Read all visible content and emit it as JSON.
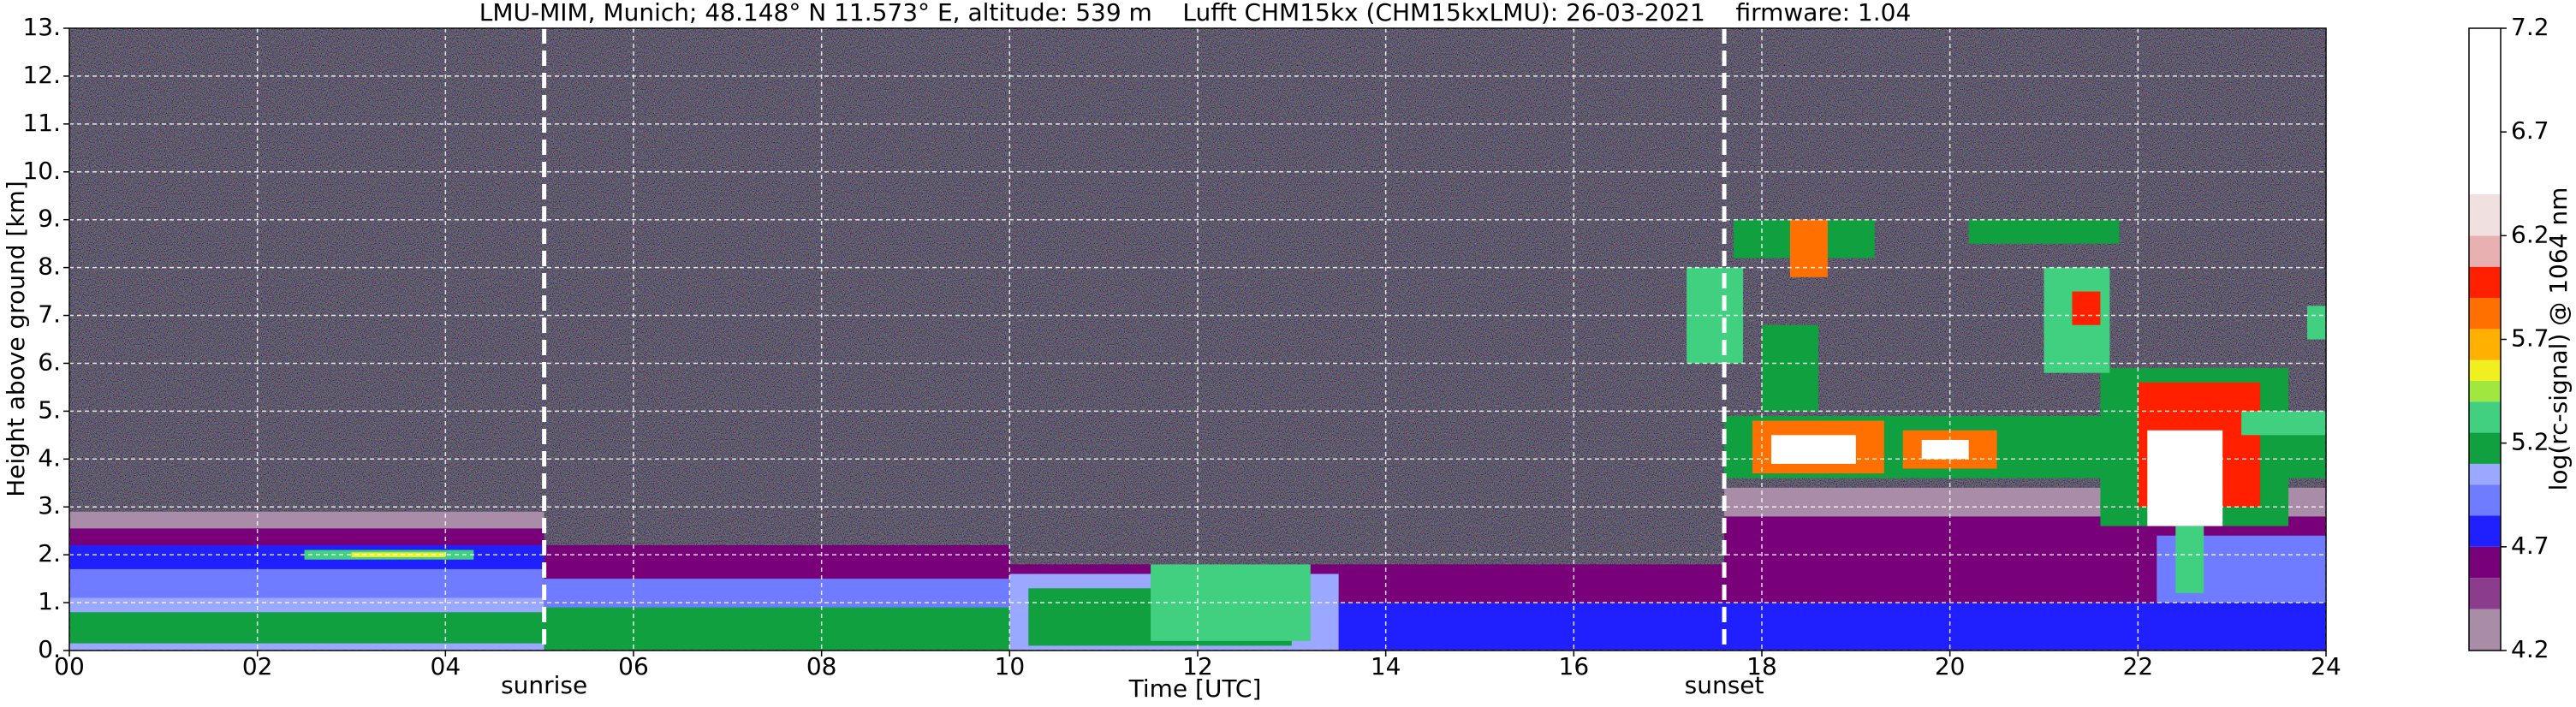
{
  "chart_data": {
    "type": "heatmap",
    "title": "LMU-MIM, Munich; 48.148° N 11.573° E, altitude: 539 m    Lufft CHM15kx (CHM15kxLMU): 26-03-2021    firmware: 1.04",
    "xlabel": "Time [UTC]",
    "ylabel": "Height above ground [km]",
    "colorbar_label": "log(rc-signal) @ 1064 nm",
    "xlim": [
      0,
      24
    ],
    "xticks": [
      {
        "value": 0,
        "label": "00"
      },
      {
        "value": 2,
        "label": "02"
      },
      {
        "value": 4,
        "label": "04"
      },
      {
        "value": 6,
        "label": "06"
      },
      {
        "value": 8,
        "label": "08"
      },
      10,
      12,
      14,
      16,
      18,
      20,
      22,
      24
    ],
    "ylim": [
      0,
      13
    ],
    "yticks": [
      {
        "value": 0,
        "label": "0."
      },
      {
        "value": 1,
        "label": "1."
      },
      {
        "value": 2,
        "label": "2."
      },
      {
        "value": 3,
        "label": "3."
      },
      {
        "value": 4,
        "label": "4."
      },
      {
        "value": 5,
        "label": "5."
      },
      {
        "value": 6,
        "label": "6."
      },
      {
        "value": 7,
        "label": "7."
      },
      {
        "value": 8,
        "label": "8."
      },
      {
        "value": 9,
        "label": "9."
      },
      {
        "value": 10,
        "label": "10."
      },
      {
        "value": 11,
        "label": "11."
      },
      {
        "value": 12,
        "label": "12."
      },
      {
        "value": 13,
        "label": "13."
      }
    ],
    "grid": true,
    "clim": [
      4.2,
      7.2
    ],
    "cticks": [
      4.2,
      4.7,
      5.2,
      5.7,
      6.2,
      6.7,
      7.2
    ],
    "colormap": {
      "bounds": [
        4.2,
        4.4,
        4.55,
        4.7,
        4.85,
        5.0,
        5.1,
        5.25,
        5.4,
        5.5,
        5.6,
        5.75,
        5.9,
        6.05,
        6.2,
        6.4,
        7.2
      ],
      "colors": [
        "#a88ca8",
        "#8c3c8c",
        "#780078",
        "#2020ff",
        "#6f7cff",
        "#9aa8ff",
        "#10a040",
        "#40d080",
        "#a0e840",
        "#f0f020",
        "#ffb000",
        "#ff7000",
        "#ff2000",
        "#e8b0b0",
        "#f0e0e0",
        "#ffffff"
      ]
    },
    "annotations": [
      {
        "text": "sunrise",
        "x": 5.05
      },
      {
        "text": "sunset",
        "x": 17.6
      }
    ],
    "regions": [
      {
        "start": 0,
        "end": 5.05,
        "bottom": 0,
        "top": 2.9,
        "value": 4.35
      },
      {
        "start": 0,
        "end": 5.05,
        "bottom": 0,
        "top": 2.55,
        "value": 4.6
      },
      {
        "start": 0,
        "end": 5.05,
        "bottom": 0,
        "top": 2.2,
        "value": 4.8
      },
      {
        "start": 0,
        "end": 5.05,
        "bottom": 0,
        "top": 1.7,
        "value": 4.95
      },
      {
        "start": 0,
        "end": 5.05,
        "bottom": 0,
        "top": 1.1,
        "value": 5.05
      },
      {
        "start": 0,
        "end": 5.05,
        "bottom": 0.15,
        "top": 0.8,
        "value": 5.2
      },
      {
        "start": 2.5,
        "end": 4.3,
        "bottom": 1.9,
        "top": 2.1,
        "value": 5.3
      },
      {
        "start": 3.0,
        "end": 4.0,
        "bottom": 1.95,
        "top": 2.05,
        "value": 5.55
      },
      {
        "start": 5.05,
        "end": 10,
        "bottom": 0,
        "top": 2.2,
        "value": 4.6
      },
      {
        "start": 5.05,
        "end": 10,
        "bottom": 0,
        "top": 1.5,
        "value": 4.95
      },
      {
        "start": 5.05,
        "end": 10,
        "bottom": 0,
        "top": 0.9,
        "value": 5.2
      },
      {
        "start": 10,
        "end": 13.5,
        "bottom": 0,
        "top": 1.8,
        "value": 4.6
      },
      {
        "start": 10,
        "end": 13.5,
        "bottom": 0,
        "top": 1.6,
        "value": 5.0
      },
      {
        "start": 10.2,
        "end": 13,
        "bottom": 0.1,
        "top": 1.3,
        "value": 5.2
      },
      {
        "start": 11.5,
        "end": 13.2,
        "bottom": 0.2,
        "top": 1.8,
        "value": 5.3
      },
      {
        "start": 13.5,
        "end": 17.6,
        "bottom": 0,
        "top": 1.8,
        "value": 4.6
      },
      {
        "start": 13.5,
        "end": 17.6,
        "bottom": 0,
        "top": 1.0,
        "value": 4.8
      },
      {
        "start": 17.6,
        "end": 24,
        "bottom": 0,
        "top": 3.4,
        "value": 4.35
      },
      {
        "start": 17.6,
        "end": 24,
        "bottom": 0,
        "top": 2.8,
        "value": 4.55
      },
      {
        "start": 17.6,
        "end": 24,
        "bottom": 0,
        "top": 1.0,
        "value": 4.8
      },
      {
        "start": 22.2,
        "end": 24,
        "bottom": 1.0,
        "top": 2.4,
        "value": 4.95
      },
      {
        "start": 17.6,
        "end": 24,
        "bottom": 3.6,
        "top": 4.9,
        "value": 5.15
      },
      {
        "start": 17.9,
        "end": 19.3,
        "bottom": 3.7,
        "top": 4.8,
        "value": 5.8
      },
      {
        "start": 18.1,
        "end": 19.0,
        "bottom": 3.9,
        "top": 4.5,
        "value": 6.5
      },
      {
        "start": 19.5,
        "end": 20.5,
        "bottom": 3.8,
        "top": 4.6,
        "value": 5.8
      },
      {
        "start": 19.7,
        "end": 20.2,
        "bottom": 4.0,
        "top": 4.4,
        "value": 6.5
      },
      {
        "start": 21.6,
        "end": 23.6,
        "bottom": 2.6,
        "top": 5.9,
        "value": 5.2
      },
      {
        "start": 22.0,
        "end": 23.3,
        "bottom": 3.0,
        "top": 5.6,
        "value": 5.9
      },
      {
        "start": 22.1,
        "end": 22.9,
        "bottom": 2.6,
        "top": 4.6,
        "value": 6.5
      },
      {
        "start": 22.4,
        "end": 22.7,
        "bottom": 1.2,
        "top": 2.6,
        "value": 5.3
      },
      {
        "start": 18.0,
        "end": 18.6,
        "bottom": 5.0,
        "top": 6.8,
        "value": 5.2
      },
      {
        "start": 17.2,
        "end": 17.8,
        "bottom": 6.0,
        "top": 8.0,
        "value": 5.3
      },
      {
        "start": 17.7,
        "end": 19.2,
        "bottom": 8.2,
        "top": 9.0,
        "value": 5.2
      },
      {
        "start": 18.3,
        "end": 18.7,
        "bottom": 7.8,
        "top": 9.0,
        "value": 5.8
      },
      {
        "start": 20.2,
        "end": 21.8,
        "bottom": 8.5,
        "top": 9.0,
        "value": 5.2
      },
      {
        "start": 21.0,
        "end": 21.7,
        "bottom": 5.8,
        "top": 8.0,
        "value": 5.3
      },
      {
        "start": 21.3,
        "end": 21.6,
        "bottom": 6.8,
        "top": 7.5,
        "value": 6.0
      },
      {
        "start": 23.1,
        "end": 24,
        "bottom": 4.5,
        "top": 5.0,
        "value": 5.3
      },
      {
        "start": 23.8,
        "end": 24,
        "bottom": 6.5,
        "top": 7.2,
        "value": 5.3
      }
    ]
  }
}
